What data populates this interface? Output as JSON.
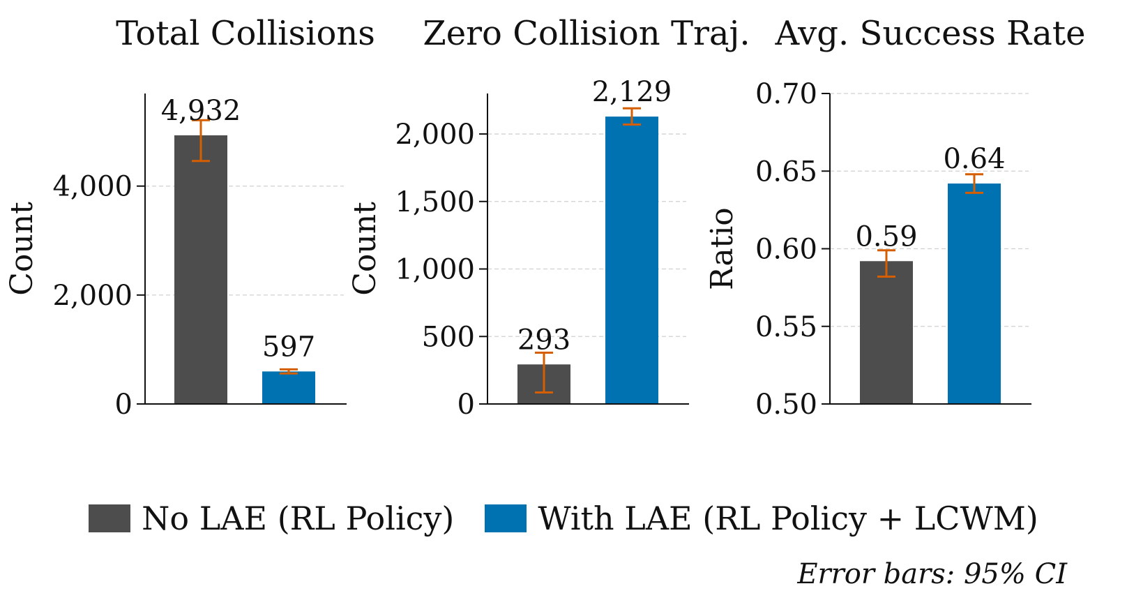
{
  "chart_data": [
    {
      "type": "bar",
      "title": "Total Collisions",
      "ylabel": "Count",
      "categories": [
        "No LAE (RL Policy)",
        "With LAE (RL Policy + LCWM)"
      ],
      "values": [
        4932,
        597
      ],
      "value_labels": [
        "4,932",
        "597"
      ],
      "error_low": [
        4460,
        560
      ],
      "error_high": [
        5210,
        635
      ],
      "ylim": [
        0,
        5700
      ],
      "yticks": [
        0,
        2000,
        4000
      ],
      "ytick_labels": [
        "0",
        "2,000",
        "4,000"
      ],
      "grid": true
    },
    {
      "type": "bar",
      "title": "Zero Collision Traj.",
      "ylabel": "Count",
      "categories": [
        "No LAE (RL Policy)",
        "With LAE (RL Policy + LCWM)"
      ],
      "values": [
        293,
        2129
      ],
      "value_labels": [
        "293",
        "2,129"
      ],
      "error_low": [
        85,
        2070
      ],
      "error_high": [
        380,
        2190
      ],
      "ylim": [
        0,
        2300
      ],
      "yticks": [
        0,
        500,
        1000,
        1500,
        2000
      ],
      "ytick_labels": [
        "0",
        "500",
        "1,000",
        "1,500",
        "2,000"
      ],
      "grid": true
    },
    {
      "type": "bar",
      "title": "Avg. Success Rate",
      "ylabel": "Ratio",
      "categories": [
        "No LAE (RL Policy)",
        "With LAE (RL Policy + LCWM)"
      ],
      "values": [
        0.592,
        0.642
      ],
      "value_labels": [
        "0.59",
        "0.64"
      ],
      "error_low": [
        0.582,
        0.636
      ],
      "error_high": [
        0.599,
        0.648
      ],
      "ylim": [
        0.5,
        0.7
      ],
      "yticks": [
        0.5,
        0.55,
        0.6,
        0.65,
        0.7
      ],
      "ytick_labels": [
        "0.50",
        "0.55",
        "0.60",
        "0.65",
        "0.70"
      ],
      "grid": true
    }
  ],
  "legend": {
    "position": "bottom-center",
    "items": [
      {
        "label": "No LAE (RL Policy)",
        "color": "#4d4d4d"
      },
      {
        "label": "With LAE (RL Policy + LCWM)",
        "color": "#0072b2"
      }
    ]
  },
  "colors": {
    "series": [
      "#4d4d4d",
      "#0072b2"
    ],
    "error_bar": "#d55e00",
    "grid": "#d0d0d0",
    "axis": "#111111"
  },
  "footnote": "Error bars: 95% CI"
}
